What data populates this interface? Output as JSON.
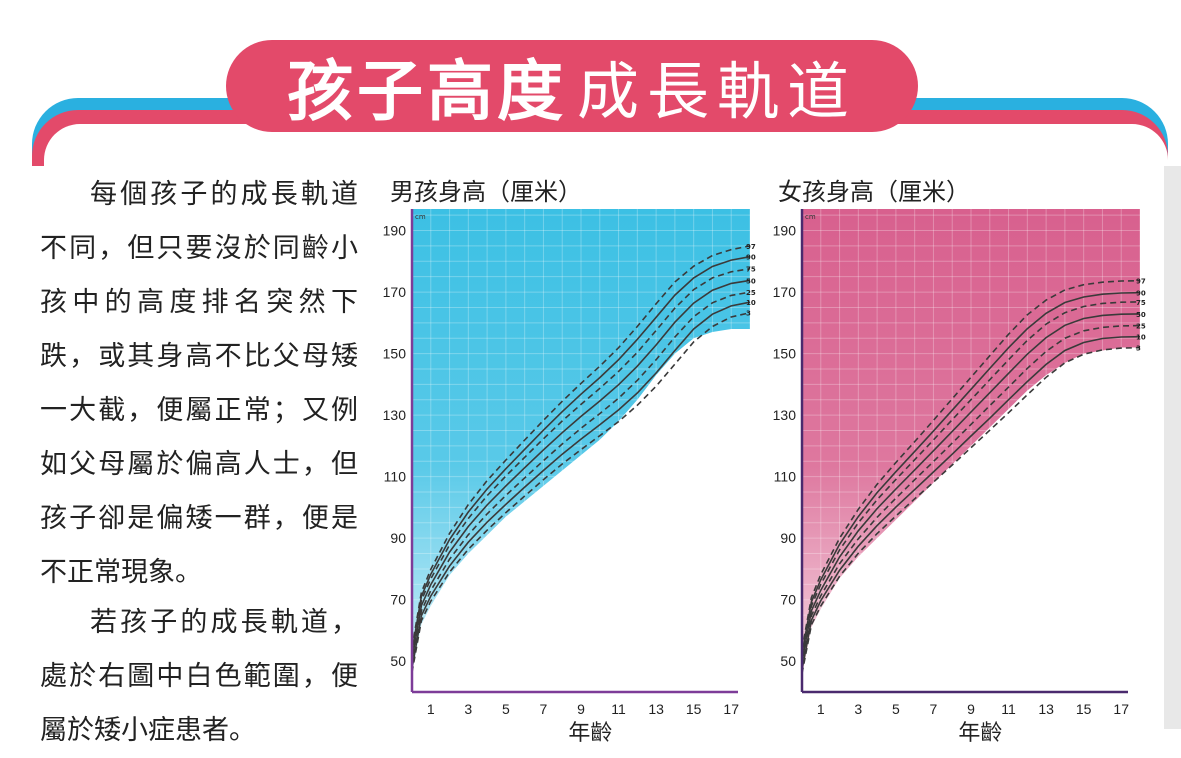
{
  "header": {
    "title_bold": "孩子高度",
    "title_light": "成長軌道"
  },
  "body_text": {
    "paragraph_1": "每個孩子的成長軌道不同，但只要沒於同齡小孩中的高度排名突然下跌，或其身高不比父母矮一大截，便屬正常；又例如父母屬於偏高人士，但孩子卻是偏矮一群，便是不正常現象。",
    "paragraph_2": "若孩子的成長軌道，處於右圖中白色範圍，便屬於矮小症患者。"
  },
  "colors": {
    "banner_red": "#e34a6a",
    "banner_blue": "#2ab0e0",
    "boys_chart": "#3cc0e4",
    "girls_chart": "#d8608e"
  },
  "chart_data": [
    {
      "type": "line",
      "title": "男孩身高（厘米）",
      "unit_label": "cm",
      "xlabel": "年齡",
      "ylabel": "",
      "xlim": [
        0,
        18
      ],
      "ylim": [
        40,
        197
      ],
      "x_ticks": [
        1,
        3,
        5,
        7,
        9,
        11,
        13,
        15,
        17
      ],
      "y_ticks": [
        50,
        70,
        90,
        110,
        130,
        150,
        170,
        190
      ],
      "grid": true,
      "x": [
        0,
        0.5,
        1,
        2,
        3,
        4,
        5,
        6,
        7,
        8,
        9,
        10,
        11,
        12,
        13,
        14,
        15,
        16,
        17,
        18
      ],
      "band_upper": [
        56,
        73,
        80,
        92,
        100,
        108,
        115,
        121,
        127,
        133,
        139,
        145,
        151,
        158,
        165,
        172,
        178,
        182,
        184,
        186
      ],
      "band_lower": [
        46,
        62,
        68,
        78,
        85,
        91,
        97,
        102,
        107,
        112,
        117,
        122,
        128,
        135,
        143,
        150,
        155,
        157,
        158,
        158
      ],
      "series": [
        {
          "name": "97",
          "dashed": true,
          "values": [
            54.4,
            72.4,
            79.9,
            91.6,
            100.9,
            108.7,
            115.4,
            121.9,
            128.3,
            134.5,
            140.3,
            145.9,
            151.9,
            158.8,
            166.2,
            173.3,
            178.4,
            181.9,
            183.8,
            185.0
          ]
        },
        {
          "name": "90",
          "dashed": false,
          "values": [
            53.2,
            71.1,
            78.3,
            89.6,
            98.5,
            106.0,
            112.6,
            118.9,
            125.1,
            131.1,
            136.8,
            142.2,
            148.0,
            154.6,
            161.8,
            169.0,
            174.6,
            178.3,
            180.4,
            181.5
          ]
        },
        {
          "name": "75",
          "dashed": true,
          "values": [
            52.0,
            69.8,
            76.8,
            87.8,
            96.4,
            103.8,
            110.2,
            116.3,
            122.3,
            128.1,
            133.5,
            138.7,
            144.2,
            150.4,
            157.5,
            164.8,
            170.8,
            174.6,
            176.6,
            177.6
          ]
        },
        {
          "name": "50",
          "dashed": false,
          "values": [
            50.5,
            68.1,
            74.9,
            85.5,
            93.8,
            100.8,
            107.0,
            112.9,
            118.7,
            124.3,
            129.6,
            134.6,
            139.9,
            145.9,
            152.8,
            160.2,
            166.4,
            170.6,
            172.8,
            173.8
          ]
        },
        {
          "name": "25",
          "dashed": true,
          "values": [
            49.0,
            66.4,
            73.0,
            83.2,
            91.1,
            97.9,
            103.9,
            109.6,
            115.2,
            120.6,
            125.7,
            130.5,
            135.5,
            141.3,
            148.0,
            155.4,
            162.0,
            166.5,
            168.9,
            170.0
          ]
        },
        {
          "name": "10",
          "dashed": false,
          "values": [
            47.7,
            64.8,
            71.2,
            81.0,
            88.7,
            95.2,
            101.0,
            106.6,
            112.0,
            117.3,
            122.2,
            126.9,
            131.7,
            137.2,
            143.7,
            151.0,
            158.0,
            162.8,
            165.5,
            166.7
          ]
        },
        {
          "name": "3",
          "dashed": true,
          "values": [
            46.4,
            63.2,
            69.5,
            79.0,
            86.4,
            92.6,
            98.3,
            103.7,
            109.0,
            114.1,
            118.8,
            123.3,
            127.9,
            133.2,
            139.4,
            146.6,
            153.8,
            158.8,
            161.9,
            163.3
          ]
        }
      ]
    },
    {
      "type": "line",
      "title": "女孩身高（厘米）",
      "unit_label": "cm",
      "xlabel": "年齡",
      "ylabel": "",
      "xlim": [
        0,
        18
      ],
      "ylim": [
        40,
        197
      ],
      "x_ticks": [
        1,
        3,
        5,
        7,
        9,
        11,
        13,
        15,
        17
      ],
      "y_ticks": [
        50,
        70,
        90,
        110,
        130,
        150,
        170,
        190
      ],
      "grid": true,
      "x": [
        0,
        0.5,
        1,
        2,
        3,
        4,
        5,
        6,
        7,
        8,
        9,
        10,
        11,
        12,
        13,
        14,
        15,
        16,
        17,
        18
      ],
      "band_upper": [
        55,
        71,
        78,
        90,
        99,
        107,
        114,
        121,
        128,
        135,
        142,
        149,
        156,
        162,
        167,
        171,
        173,
        174,
        174,
        174
      ],
      "band_lower": [
        45,
        61,
        67,
        77,
        84,
        90,
        96,
        102,
        108,
        114,
        120,
        126,
        132,
        138,
        143,
        147,
        150,
        151,
        152,
        152
      ],
      "series": [
        {
          "name": "97",
          "dashed": true,
          "values": [
            53.8,
            70.7,
            78.2,
            90.0,
            99.4,
            107.5,
            114.6,
            121.4,
            128.3,
            135.3,
            142.3,
            149.3,
            156.3,
            162.6,
            167.4,
            170.7,
            172.4,
            173.2,
            173.6,
            173.7
          ]
        },
        {
          "name": "90",
          "dashed": false,
          "values": [
            52.5,
            69.3,
            76.5,
            88.0,
            97.0,
            104.8,
            111.6,
            118.2,
            124.8,
            131.6,
            138.4,
            145.2,
            151.9,
            158.1,
            163.1,
            166.6,
            168.4,
            169.3,
            169.7,
            169.8
          ]
        },
        {
          "name": "75",
          "dashed": true,
          "values": [
            51.3,
            68.0,
            75.0,
            86.2,
            95.0,
            102.5,
            109.1,
            115.5,
            121.9,
            128.5,
            135.0,
            141.5,
            148.0,
            154.3,
            159.6,
            163.3,
            165.3,
            166.3,
            166.7,
            166.8
          ]
        },
        {
          "name": "50",
          "dashed": false,
          "values": [
            49.9,
            66.4,
            73.1,
            83.9,
            92.4,
            99.6,
            106.0,
            112.2,
            118.4,
            124.7,
            131.0,
            137.3,
            143.6,
            149.8,
            155.2,
            159.2,
            161.4,
            162.4,
            162.8,
            162.9
          ]
        },
        {
          "name": "25",
          "dashed": true,
          "values": [
            48.4,
            64.8,
            71.3,
            81.7,
            89.8,
            96.8,
            103.0,
            109.0,
            114.9,
            120.9,
            127.0,
            133.1,
            139.1,
            145.2,
            150.7,
            155.0,
            157.4,
            158.5,
            159.0,
            159.1
          ]
        },
        {
          "name": "10",
          "dashed": false,
          "values": [
            47.2,
            63.3,
            69.7,
            79.6,
            87.4,
            94.1,
            100.1,
            105.8,
            111.5,
            117.3,
            123.2,
            129.0,
            135.0,
            140.9,
            146.5,
            151.0,
            153.6,
            154.9,
            155.4,
            155.5
          ]
        },
        {
          "name": "3",
          "dashed": true,
          "values": [
            46.0,
            61.8,
            68.0,
            77.6,
            85.1,
            91.5,
            97.2,
            102.8,
            108.2,
            113.8,
            119.4,
            125.1,
            130.8,
            136.6,
            142.3,
            147.0,
            149.8,
            151.2,
            151.8,
            151.9
          ]
        }
      ]
    }
  ]
}
